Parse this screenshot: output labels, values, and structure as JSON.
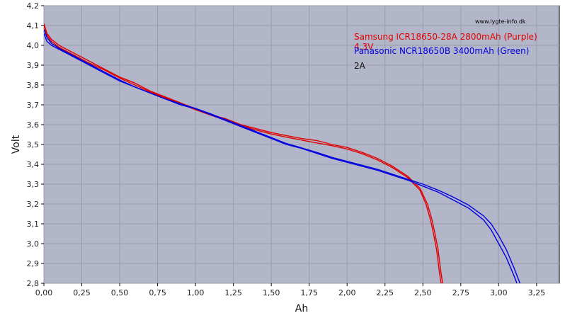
{
  "chart_data": {
    "type": "line",
    "title": "",
    "xlabel": "Ah",
    "ylabel": "Volt",
    "xlim": [
      0,
      3.4
    ],
    "ylim": [
      2.8,
      4.2
    ],
    "x_ticks": [
      "0,00",
      "0,25",
      "0,50",
      "0,75",
      "1,00",
      "1,25",
      "1,50",
      "1,75",
      "2,00",
      "2,25",
      "2,50",
      "2,75",
      "3,00",
      "3,25"
    ],
    "y_ticks": [
      "2,8",
      "2,9",
      "3,0",
      "3,1",
      "3,2",
      "3,3",
      "3,4",
      "3,5",
      "3,6",
      "3,7",
      "3,8",
      "3,9",
      "4,0",
      "4,1",
      "4,2"
    ],
    "grid": true,
    "watermark": "www.lygte-info.dk",
    "legend": {
      "placement": "top-right",
      "entries": [
        {
          "text": "Samsung ICR18650-28A 2800mAh (Purple)",
          "color": "#e00000"
        },
        {
          "text": "4.3V",
          "color": "#e00000"
        },
        {
          "text": "Panasonic NCR18650B 3400mAh (Green)",
          "color": "#0000e0"
        },
        {
          "text": "2A",
          "color": "#111111"
        }
      ]
    },
    "series": [
      {
        "color": "#e00000",
        "points": [
          [
            0.0,
            4.11
          ],
          [
            0.02,
            4.06
          ],
          [
            0.05,
            4.03
          ],
          [
            0.1,
            4.0
          ],
          [
            0.2,
            3.96
          ],
          [
            0.3,
            3.92
          ],
          [
            0.4,
            3.88
          ],
          [
            0.5,
            3.84
          ],
          [
            0.6,
            3.81
          ],
          [
            0.7,
            3.77
          ],
          [
            0.8,
            3.74
          ],
          [
            0.9,
            3.71
          ],
          [
            1.0,
            3.68
          ],
          [
            1.1,
            3.65
          ],
          [
            1.2,
            3.63
          ],
          [
            1.3,
            3.6
          ],
          [
            1.4,
            3.58
          ],
          [
            1.5,
            3.56
          ],
          [
            1.6,
            3.545
          ],
          [
            1.7,
            3.53
          ],
          [
            1.8,
            3.52
          ],
          [
            1.9,
            3.5
          ],
          [
            2.0,
            3.485
          ],
          [
            2.1,
            3.46
          ],
          [
            2.2,
            3.43
          ],
          [
            2.3,
            3.39
          ],
          [
            2.4,
            3.34
          ],
          [
            2.48,
            3.28
          ],
          [
            2.53,
            3.2
          ],
          [
            2.56,
            3.12
          ],
          [
            2.58,
            3.05
          ],
          [
            2.6,
            2.97
          ],
          [
            2.62,
            2.85
          ],
          [
            2.63,
            2.8
          ]
        ]
      },
      {
        "color": "#e00000",
        "points": [
          [
            0.0,
            4.1
          ],
          [
            0.02,
            4.05
          ],
          [
            0.05,
            4.02
          ],
          [
            0.1,
            3.99
          ],
          [
            0.2,
            3.95
          ],
          [
            0.3,
            3.91
          ],
          [
            0.4,
            3.875
          ],
          [
            0.5,
            3.835
          ],
          [
            0.6,
            3.8
          ],
          [
            0.7,
            3.765
          ],
          [
            0.8,
            3.735
          ],
          [
            0.9,
            3.705
          ],
          [
            1.0,
            3.675
          ],
          [
            1.1,
            3.648
          ],
          [
            1.2,
            3.622
          ],
          [
            1.3,
            3.596
          ],
          [
            1.4,
            3.573
          ],
          [
            1.5,
            3.553
          ],
          [
            1.6,
            3.537
          ],
          [
            1.7,
            3.522
          ],
          [
            1.8,
            3.508
          ],
          [
            1.9,
            3.494
          ],
          [
            2.0,
            3.477
          ],
          [
            2.1,
            3.453
          ],
          [
            2.2,
            3.422
          ],
          [
            2.3,
            3.383
          ],
          [
            2.4,
            3.333
          ],
          [
            2.48,
            3.27
          ],
          [
            2.52,
            3.2
          ],
          [
            2.55,
            3.12
          ],
          [
            2.57,
            3.05
          ],
          [
            2.59,
            2.97
          ],
          [
            2.61,
            2.85
          ],
          [
            2.62,
            2.8
          ]
        ]
      },
      {
        "color": "#0000e0",
        "points": [
          [
            0.0,
            4.06
          ],
          [
            0.02,
            4.02
          ],
          [
            0.05,
            4.0
          ],
          [
            0.1,
            3.98
          ],
          [
            0.2,
            3.94
          ],
          [
            0.3,
            3.9
          ],
          [
            0.4,
            3.86
          ],
          [
            0.5,
            3.82
          ],
          [
            0.6,
            3.79
          ],
          [
            0.7,
            3.76
          ],
          [
            0.8,
            3.73
          ],
          [
            0.9,
            3.7
          ],
          [
            1.0,
            3.68
          ],
          [
            1.1,
            3.65
          ],
          [
            1.2,
            3.62
          ],
          [
            1.3,
            3.59
          ],
          [
            1.4,
            3.56
          ],
          [
            1.5,
            3.53
          ],
          [
            1.6,
            3.5
          ],
          [
            1.7,
            3.48
          ],
          [
            1.8,
            3.455
          ],
          [
            1.9,
            3.43
          ],
          [
            2.0,
            3.41
          ],
          [
            2.1,
            3.39
          ],
          [
            2.2,
            3.37
          ],
          [
            2.3,
            3.345
          ],
          [
            2.4,
            3.32
          ],
          [
            2.5,
            3.29
          ],
          [
            2.6,
            3.26
          ],
          [
            2.7,
            3.22
          ],
          [
            2.8,
            3.18
          ],
          [
            2.9,
            3.12
          ],
          [
            2.95,
            3.07
          ],
          [
            3.0,
            3.0
          ],
          [
            3.05,
            2.93
          ],
          [
            3.1,
            2.84
          ],
          [
            3.12,
            2.8
          ]
        ]
      },
      {
        "color": "#0000e0",
        "points": [
          [
            0.0,
            4.08
          ],
          [
            0.02,
            4.04
          ],
          [
            0.05,
            4.01
          ],
          [
            0.1,
            3.985
          ],
          [
            0.2,
            3.945
          ],
          [
            0.3,
            3.905
          ],
          [
            0.4,
            3.865
          ],
          [
            0.5,
            3.825
          ],
          [
            0.6,
            3.79
          ],
          [
            0.7,
            3.76
          ],
          [
            0.8,
            3.73
          ],
          [
            0.9,
            3.705
          ],
          [
            1.0,
            3.682
          ],
          [
            1.1,
            3.655
          ],
          [
            1.2,
            3.625
          ],
          [
            1.3,
            3.595
          ],
          [
            1.4,
            3.565
          ],
          [
            1.5,
            3.535
          ],
          [
            1.6,
            3.505
          ],
          [
            1.7,
            3.483
          ],
          [
            1.8,
            3.46
          ],
          [
            1.9,
            3.435
          ],
          [
            2.0,
            3.415
          ],
          [
            2.1,
            3.395
          ],
          [
            2.2,
            3.375
          ],
          [
            2.3,
            3.35
          ],
          [
            2.4,
            3.325
          ],
          [
            2.5,
            3.3
          ],
          [
            2.6,
            3.27
          ],
          [
            2.7,
            3.235
          ],
          [
            2.8,
            3.195
          ],
          [
            2.9,
            3.14
          ],
          [
            2.95,
            3.1
          ],
          [
            3.0,
            3.04
          ],
          [
            3.05,
            2.97
          ],
          [
            3.1,
            2.88
          ],
          [
            3.13,
            2.82
          ],
          [
            3.14,
            2.8
          ]
        ]
      }
    ]
  }
}
